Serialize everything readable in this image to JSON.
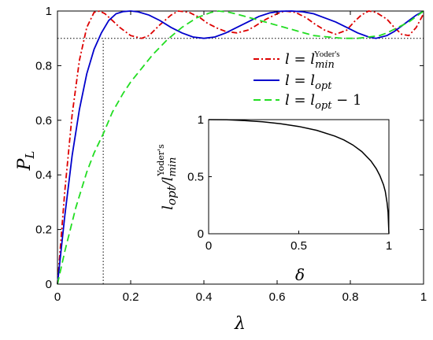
{
  "chart_data": [
    {
      "type": "line",
      "xlabel": "λ",
      "ylabel": "P_L",
      "xlim": [
        0,
        1
      ],
      "ylim": [
        0,
        1
      ],
      "xticks": [
        "0",
        "0.2",
        "0.4",
        "0.6",
        "0.8",
        "1"
      ],
      "yticks": [
        "0",
        "0.2",
        "0.4",
        "0.6",
        "0.8",
        "1"
      ],
      "grid": false,
      "legend_placement": "right",
      "reference_lines": {
        "y": 0.9,
        "x": 0.125,
        "style": "dotted"
      },
      "series": [
        {
          "name": "l = l_min^{Yoder's}",
          "color": "#dd0000",
          "dash": "dash-dot",
          "x": [
            0,
            0.02,
            0.04,
            0.06,
            0.08,
            0.1,
            0.115,
            0.13,
            0.15,
            0.17,
            0.2,
            0.23,
            0.25,
            0.28,
            0.31,
            0.33,
            0.36,
            0.39,
            0.41,
            0.44,
            0.46,
            0.49,
            0.52,
            0.54,
            0.57,
            0.6,
            0.62,
            0.65,
            0.68,
            0.7,
            0.73,
            0.76,
            0.79,
            0.81,
            0.83,
            0.85,
            0.87,
            0.9,
            0.92,
            0.94,
            0.96,
            0.98,
            1.0
          ],
          "y": [
            0,
            0.34,
            0.62,
            0.82,
            0.94,
            0.995,
            1.0,
            0.99,
            0.965,
            0.94,
            0.91,
            0.9,
            0.91,
            0.95,
            0.985,
            1.0,
            0.995,
            0.975,
            0.955,
            0.935,
            0.925,
            0.92,
            0.93,
            0.945,
            0.97,
            0.99,
            1.0,
            0.995,
            0.975,
            0.955,
            0.93,
            0.915,
            0.93,
            0.96,
            0.985,
            1.0,
            0.995,
            0.97,
            0.94,
            0.915,
            0.91,
            0.94,
            0.99
          ]
        },
        {
          "name": "l = l_opt",
          "color": "#0000cc",
          "dash": "solid",
          "x": [
            0,
            0.02,
            0.04,
            0.06,
            0.08,
            0.1,
            0.12,
            0.14,
            0.16,
            0.18,
            0.2,
            0.22,
            0.25,
            0.28,
            0.31,
            0.34,
            0.37,
            0.4,
            0.43,
            0.46,
            0.49,
            0.52,
            0.55,
            0.58,
            0.61,
            0.64,
            0.67,
            0.7,
            0.73,
            0.76,
            0.79,
            0.82,
            0.85,
            0.87,
            0.9,
            0.92,
            0.94,
            0.96,
            0.98,
            1.0
          ],
          "y": [
            0,
            0.25,
            0.47,
            0.64,
            0.77,
            0.86,
            0.92,
            0.965,
            0.99,
            0.998,
            1.0,
            0.997,
            0.985,
            0.965,
            0.94,
            0.92,
            0.905,
            0.9,
            0.905,
            0.92,
            0.94,
            0.96,
            0.98,
            0.993,
            0.999,
            1.0,
            0.997,
            0.99,
            0.975,
            0.96,
            0.94,
            0.92,
            0.905,
            0.9,
            0.91,
            0.925,
            0.945,
            0.965,
            0.985,
            1.0
          ]
        },
        {
          "name": "l = l_opt − 1",
          "color": "#22dd22",
          "dash": "dashed",
          "x": [
            0,
            0.02,
            0.05,
            0.08,
            0.1,
            0.125,
            0.15,
            0.18,
            0.2,
            0.23,
            0.26,
            0.3,
            0.34,
            0.38,
            0.42,
            0.44,
            0.47,
            0.5,
            0.54,
            0.58,
            0.62,
            0.66,
            0.7,
            0.74,
            0.78,
            0.82,
            0.85,
            0.88,
            0.9,
            0.93,
            0.96,
            0.98,
            1.0
          ],
          "y": [
            0,
            0.12,
            0.28,
            0.41,
            0.48,
            0.55,
            0.63,
            0.7,
            0.74,
            0.79,
            0.84,
            0.895,
            0.94,
            0.975,
            0.995,
            1.0,
            0.995,
            0.985,
            0.97,
            0.955,
            0.94,
            0.925,
            0.91,
            0.905,
            0.9,
            0.9,
            0.905,
            0.91,
            0.92,
            0.94,
            0.96,
            0.98,
            1.0
          ]
        }
      ]
    },
    {
      "type": "line",
      "xlabel": "δ",
      "ylabel": "l_opt/l_min^{Yoder's}",
      "xlim": [
        0,
        1
      ],
      "ylim": [
        0,
        1
      ],
      "xticks": [
        "0",
        "0.5",
        "1"
      ],
      "yticks": [
        "0",
        "0.5",
        "1"
      ],
      "series": [
        {
          "color": "#000000",
          "x": [
            0,
            0.1,
            0.2,
            0.3,
            0.4,
            0.5,
            0.6,
            0.7,
            0.75,
            0.8,
            0.85,
            0.9,
            0.93,
            0.95,
            0.97,
            0.98,
            0.99,
            0.995,
            1.0
          ],
          "y": [
            1.0,
            0.999,
            0.992,
            0.981,
            0.964,
            0.94,
            0.906,
            0.856,
            0.822,
            0.778,
            0.72,
            0.638,
            0.57,
            0.51,
            0.43,
            0.37,
            0.27,
            0.19,
            0.0
          ]
        }
      ]
    }
  ],
  "legend": {
    "entry1": {
      "lhs": "l",
      "eq": " = ",
      "var": "l",
      "sub": "min",
      "sup": "Yoder's"
    },
    "entry2": {
      "lhs": "l",
      "eq": " = ",
      "var": "l",
      "sub": "opt"
    },
    "entry3": {
      "lhs": "l",
      "eq": " = ",
      "var": "l",
      "sub": "opt",
      "tail": " − 1"
    }
  },
  "main_axis": {
    "ylabel_main": "P",
    "ylabel_sub": "L",
    "xlabel": "λ"
  },
  "inset_axis": {
    "xlabel": "δ",
    "ylabel_num": "l",
    "ylabel_num_sub": "opt",
    "ylabel_den": "/l",
    "ylabel_den_sub": "min",
    "ylabel_den_sup": "Yoder's"
  }
}
